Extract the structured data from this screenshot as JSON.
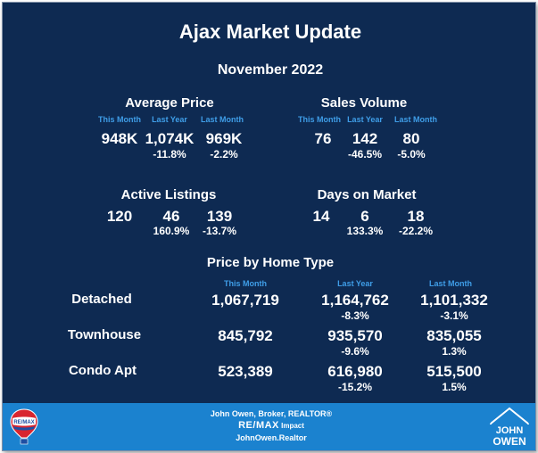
{
  "title": "Ajax Market Update",
  "period": "November 2022",
  "col_headers": {
    "this_month": "This Month",
    "last_year": "Last Year",
    "last_month": "Last Month"
  },
  "average_price": {
    "title": "Average Price",
    "this_month": "948K",
    "last_year": "1,074K",
    "last_month": "969K",
    "yoy": "-11.8%",
    "mom": "-2.2%"
  },
  "sales_volume": {
    "title": "Sales Volume",
    "this_month": "76",
    "last_year": "142",
    "last_month": "80",
    "yoy": "-46.5%",
    "mom": "-5.0%"
  },
  "active_listings": {
    "title": "Active Listings",
    "this_month": "120",
    "last_year": "46",
    "last_month": "139",
    "yoy": "160.9%",
    "mom": "-13.7%"
  },
  "days_on_market": {
    "title": "Days on Market",
    "this_month": "14",
    "last_year": "6",
    "last_month": "18",
    "yoy": "133.3%",
    "mom": "-22.2%"
  },
  "home_type": {
    "title": "Price by Home Type",
    "rows": [
      {
        "label": "Detached",
        "this_month": "1,067,719",
        "last_year": "1,164,762",
        "yoy": "-8.3%",
        "last_month": "1,101,332",
        "mom": "-3.1%"
      },
      {
        "label": "Townhouse",
        "this_month": "845,792",
        "last_year": "935,570",
        "yoy": "-9.6%",
        "last_month": "835,055",
        "mom": "1.3%"
      },
      {
        "label": "Condo Apt",
        "this_month": "523,389",
        "last_year": "616,980",
        "yoy": "-15.2%",
        "last_month": "515,500",
        "mom": "1.5%"
      }
    ]
  },
  "footer": {
    "line1": "John Owen, Broker, REALTOR®",
    "brand": "RE/MAX",
    "brand_suffix": " Impact",
    "line3": "JohnOwen.Realtor",
    "remax_logo_text": "RE/MAX",
    "logo_line1": "JOHN",
    "logo_line2": "OWEN"
  },
  "colors": {
    "background": "#0e2a52",
    "accent": "#3f9ee8",
    "footer": "#1b82cf"
  }
}
